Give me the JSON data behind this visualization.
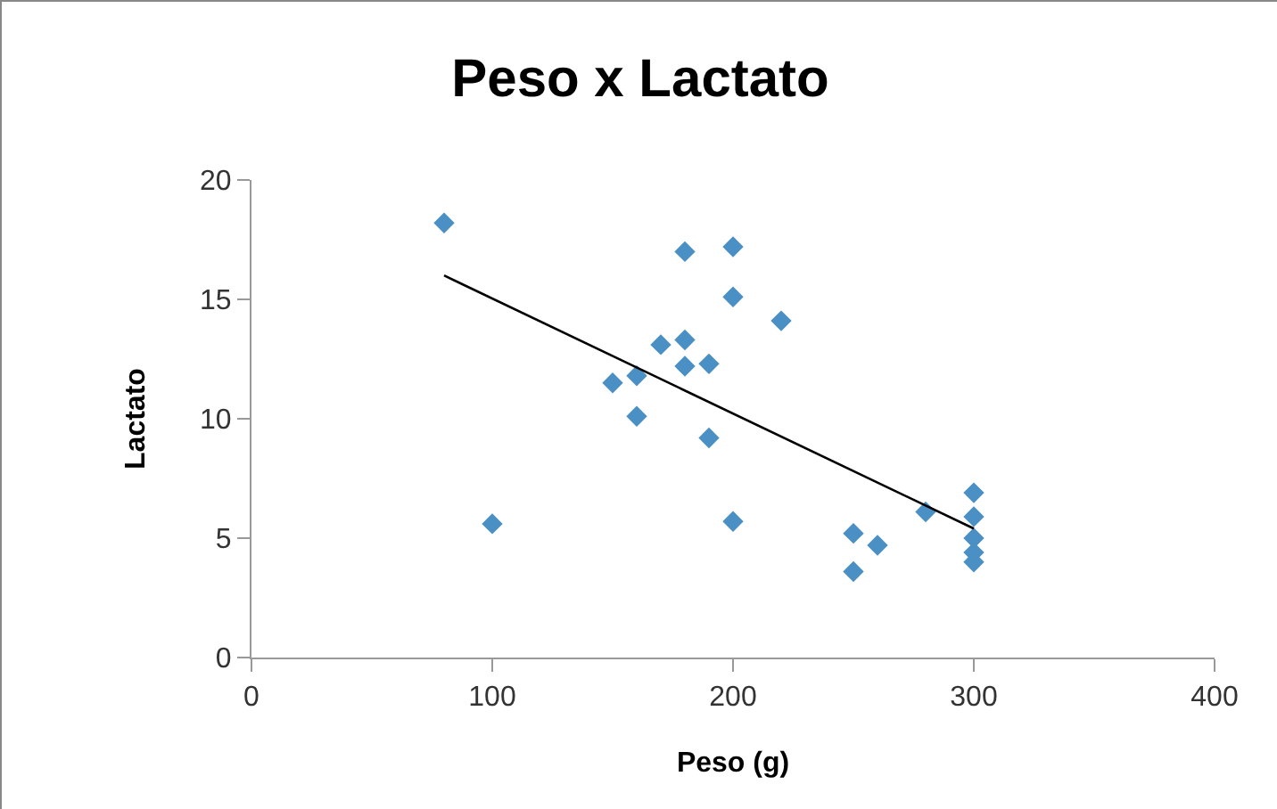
{
  "chart_data": {
    "type": "scatter",
    "title": "Peso x Lactato",
    "xlabel": "Peso (g)",
    "ylabel": "Lactato",
    "xlim": [
      0,
      400
    ],
    "xticks": [
      0,
      100,
      200,
      300,
      400
    ],
    "ylim": [
      0,
      20
    ],
    "yticks": [
      0,
      5,
      10,
      15,
      20
    ],
    "grid": false,
    "marker": "diamond",
    "series": [
      {
        "color": "#4a90c4",
        "x": [
          80,
          100,
          150,
          160,
          160,
          170,
          180,
          180,
          180,
          190,
          190,
          200,
          200,
          200,
          220,
          250,
          250,
          260,
          280,
          300,
          300,
          300,
          300,
          300
        ],
        "values": [
          18.2,
          5.6,
          11.5,
          11.8,
          10.1,
          13.1,
          17,
          13.3,
          12.2,
          12.3,
          9.2,
          17.2,
          15.1,
          5.7,
          14.1,
          5.2,
          3.6,
          4.7,
          6.1,
          6.9,
          5.9,
          5.0,
          4.4,
          4.0
        ]
      },
      {
        "type": "line",
        "color": "#000000",
        "x": [
          80,
          300
        ],
        "values": [
          16.0,
          5.4
        ],
        "marker": "none",
        "line_style": "solid"
      }
    ]
  }
}
